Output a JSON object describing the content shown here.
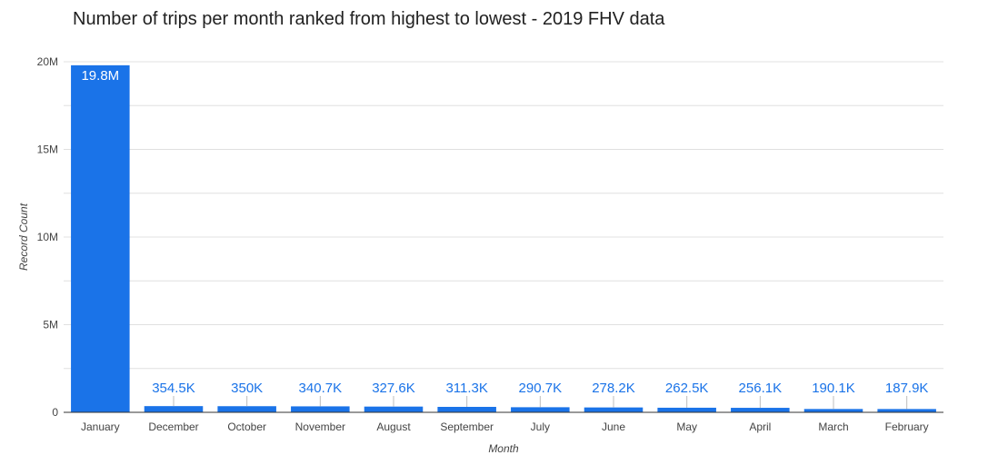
{
  "chart_data": {
    "type": "bar",
    "title": "Number of trips per month ranked from highest to lowest - 2019 FHV data",
    "xlabel": "Month",
    "ylabel": "Record Count",
    "ylim": [
      0,
      20000000
    ],
    "yticks": [
      0,
      5000000,
      10000000,
      15000000,
      20000000
    ],
    "ytick_labels": [
      "0",
      "5M",
      "10M",
      "15M",
      "20M"
    ],
    "grid": true,
    "minor_grid": true,
    "categories": [
      "January",
      "December",
      "October",
      "November",
      "August",
      "September",
      "July",
      "June",
      "May",
      "April",
      "March",
      "February"
    ],
    "values": [
      19800000,
      354500,
      350000,
      340700,
      327600,
      311300,
      290700,
      278200,
      262500,
      256100,
      190100,
      187900
    ],
    "data_labels": [
      "19.8M",
      "354.5K",
      "350K",
      "340.7K",
      "327.6K",
      "311.3K",
      "290.7K",
      "278.2K",
      "262.5K",
      "256.1K",
      "190.1K",
      "187.9K"
    ],
    "bar_color": "#1a73e8",
    "label_color": "#1a73e8",
    "inside_label_color": "#ffffff",
    "grid_color": "#e0e0e0",
    "axis_color": "#333333"
  }
}
